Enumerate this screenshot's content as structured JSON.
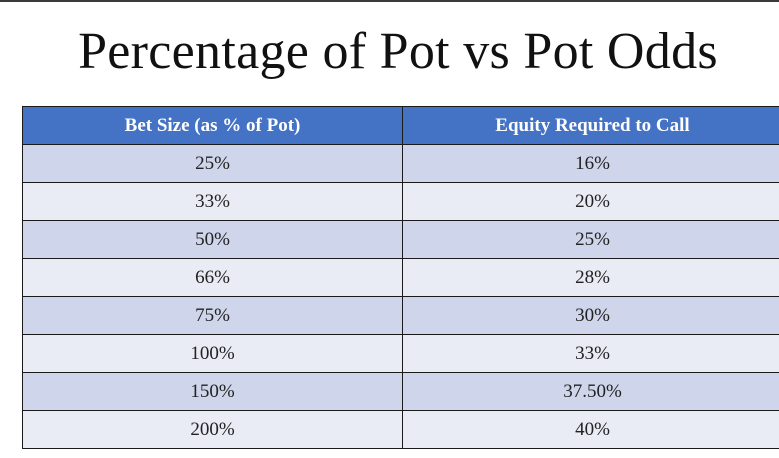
{
  "title": "Percentage of Pot vs Pot Odds",
  "table": {
    "headers": [
      "Bet Size (as % of Pot)",
      "Equity Required to Call"
    ],
    "rows": [
      [
        "25%",
        "16%"
      ],
      [
        "33%",
        "20%"
      ],
      [
        "50%",
        "25%"
      ],
      [
        "66%",
        "28%"
      ],
      [
        "75%",
        "30%"
      ],
      [
        "100%",
        "33%"
      ],
      [
        "150%",
        "37.50%"
      ],
      [
        "200%",
        "40%"
      ]
    ]
  },
  "colors": {
    "header_bg": "#4472c4",
    "row_band_dark": "#cfd5ea",
    "row_band_light": "#e9ebf5"
  }
}
